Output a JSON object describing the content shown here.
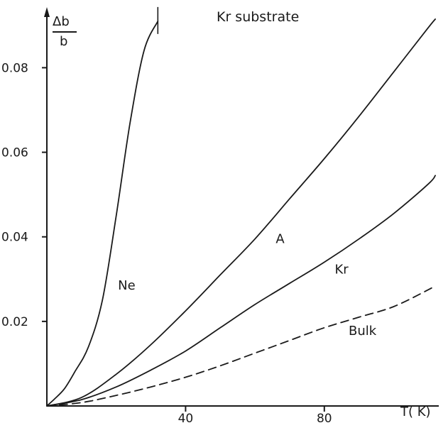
{
  "chart_data": {
    "type": "line",
    "title": "Kr substrate",
    "xlabel": "T( K)",
    "ylabel_num": "Δb",
    "ylabel_den": "b",
    "xlim": [
      0,
      113
    ],
    "ylim": [
      0,
      0.094
    ],
    "x_ticks": [
      {
        "value": 40,
        "label": "40"
      },
      {
        "value": 80,
        "label": "80"
      }
    ],
    "y_ticks": [
      {
        "value": 0.02,
        "label": "0.02"
      },
      {
        "value": 0.04,
        "label": "0.04"
      },
      {
        "value": 0.06,
        "label": "0.06"
      },
      {
        "value": 0.08,
        "label": "0.08"
      }
    ],
    "grid": false,
    "legend": "none",
    "series": [
      {
        "name": "Ne",
        "style": "solid",
        "label_at": [
          20.5,
          0.0275
        ],
        "x": [
          0,
          2,
          5,
          8,
          12,
          16,
          20,
          24,
          28,
          32
        ],
        "y": [
          0,
          0.0015,
          0.004,
          0.008,
          0.014,
          0.025,
          0.045,
          0.067,
          0.084,
          0.091
        ]
      },
      {
        "name": "A",
        "style": "solid",
        "label_at": [
          66,
          0.0385
        ],
        "x": [
          0,
          10,
          20,
          30,
          40,
          50,
          60,
          70,
          80,
          90,
          100,
          110,
          112
        ],
        "y": [
          0,
          0.002,
          0.0075,
          0.0145,
          0.0225,
          0.031,
          0.0395,
          0.049,
          0.0585,
          0.0685,
          0.079,
          0.0895,
          0.0915
        ]
      },
      {
        "name": "Kr",
        "style": "solid",
        "label_at": [
          83,
          0.0313
        ],
        "x": [
          0,
          10,
          20,
          30,
          40,
          50,
          60,
          70,
          80,
          90,
          100,
          110,
          112
        ],
        "y": [
          0,
          0.0015,
          0.0045,
          0.0085,
          0.013,
          0.0185,
          0.024,
          0.029,
          0.034,
          0.0395,
          0.0455,
          0.0525,
          0.0545
        ]
      },
      {
        "name": "Bulk",
        "style": "dashed",
        "label_at": [
          87,
          0.0168
        ],
        "x": [
          0,
          10,
          20,
          30,
          40,
          50,
          60,
          70,
          80,
          90,
          100,
          110,
          112
        ],
        "y": [
          0,
          0.0008,
          0.0025,
          0.0045,
          0.0068,
          0.0095,
          0.0125,
          0.0155,
          0.0185,
          0.021,
          0.0235,
          0.0275,
          0.0285
        ]
      }
    ]
  }
}
